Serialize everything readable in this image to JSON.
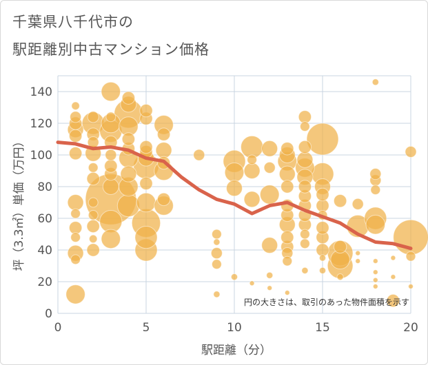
{
  "title_line1": "千葉県八千代市の",
  "title_line2": "駅距離別中古マンション価格",
  "colors": {
    "bubble": "#f0b24a",
    "line": "#d9634b",
    "grid": "#c9d4e0",
    "text": "#555555"
  },
  "chart_data": {
    "type": "scatter",
    "title": "千葉県八千代市の駅距離別中古マンション価格",
    "xlabel": "駅距離（分）",
    "ylabel": "坪（3.3㎡）単価（万円）",
    "xlim": [
      0,
      20
    ],
    "ylim": [
      0,
      150
    ],
    "xticks": [
      "0",
      "5",
      "10",
      "15",
      "20"
    ],
    "yticks": [
      "0",
      "20",
      "40",
      "60",
      "80",
      "100",
      "120",
      "140"
    ],
    "grid": true,
    "note": "円の大きさは、取引のあった物件面積を示す",
    "series": [
      {
        "kind": "bubble",
        "points": [
          {
            "x": 1,
            "y": 12,
            "s": 12
          },
          {
            "x": 1,
            "y": 34,
            "s": 6
          },
          {
            "x": 1,
            "y": 38,
            "s": 10
          },
          {
            "x": 1,
            "y": 48,
            "s": 6
          },
          {
            "x": 1,
            "y": 54,
            "s": 8
          },
          {
            "x": 1,
            "y": 63,
            "s": 6
          },
          {
            "x": 1,
            "y": 70,
            "s": 10
          },
          {
            "x": 1,
            "y": 101,
            "s": 8
          },
          {
            "x": 1,
            "y": 112,
            "s": 8
          },
          {
            "x": 1,
            "y": 116,
            "s": 10
          },
          {
            "x": 1,
            "y": 120,
            "s": 8
          },
          {
            "x": 1,
            "y": 124,
            "s": 7
          },
          {
            "x": 1,
            "y": 131,
            "s": 5
          },
          {
            "x": 2,
            "y": 40,
            "s": 8
          },
          {
            "x": 2,
            "y": 47,
            "s": 5
          },
          {
            "x": 2,
            "y": 55,
            "s": 8
          },
          {
            "x": 2,
            "y": 62,
            "s": 6
          },
          {
            "x": 2,
            "y": 70,
            "s": 6
          },
          {
            "x": 2,
            "y": 85,
            "s": 8
          },
          {
            "x": 2,
            "y": 92,
            "s": 6
          },
          {
            "x": 2,
            "y": 101,
            "s": 10
          },
          {
            "x": 2,
            "y": 108,
            "s": 7
          },
          {
            "x": 2,
            "y": 113,
            "s": 8
          },
          {
            "x": 2,
            "y": 120,
            "s": 14
          },
          {
            "x": 2,
            "y": 124,
            "s": 7
          },
          {
            "x": 3,
            "y": 72,
            "s": 32
          },
          {
            "x": 3,
            "y": 47,
            "s": 12
          },
          {
            "x": 3,
            "y": 58,
            "s": 14
          },
          {
            "x": 3,
            "y": 80,
            "s": 10
          },
          {
            "x": 3,
            "y": 88,
            "s": 8
          },
          {
            "x": 3,
            "y": 93,
            "s": 8
          },
          {
            "x": 3,
            "y": 100,
            "s": 7
          },
          {
            "x": 3,
            "y": 108,
            "s": 8
          },
          {
            "x": 3,
            "y": 115,
            "s": 14
          },
          {
            "x": 3,
            "y": 120,
            "s": 12
          },
          {
            "x": 3,
            "y": 124,
            "s": 6
          },
          {
            "x": 3,
            "y": 140,
            "s": 12
          },
          {
            "x": 4,
            "y": 68,
            "s": 14
          },
          {
            "x": 4,
            "y": 80,
            "s": 12
          },
          {
            "x": 4,
            "y": 88,
            "s": 10
          },
          {
            "x": 4,
            "y": 98,
            "s": 12
          },
          {
            "x": 4,
            "y": 104,
            "s": 8
          },
          {
            "x": 4,
            "y": 110,
            "s": 8
          },
          {
            "x": 4,
            "y": 118,
            "s": 12
          },
          {
            "x": 4,
            "y": 126,
            "s": 18
          },
          {
            "x": 4,
            "y": 132,
            "s": 10
          },
          {
            "x": 4,
            "y": 136,
            "s": 8
          },
          {
            "x": 5,
            "y": 40,
            "s": 14
          },
          {
            "x": 5,
            "y": 48,
            "s": 14
          },
          {
            "x": 5,
            "y": 57,
            "s": 18
          },
          {
            "x": 5,
            "y": 70,
            "s": 12
          },
          {
            "x": 5,
            "y": 82,
            "s": 8
          },
          {
            "x": 5,
            "y": 93,
            "s": 16
          },
          {
            "x": 5,
            "y": 98,
            "s": 10
          },
          {
            "x": 5,
            "y": 102,
            "s": 8
          },
          {
            "x": 5,
            "y": 105,
            "s": 8
          },
          {
            "x": 5,
            "y": 123,
            "s": 8
          },
          {
            "x": 5,
            "y": 128,
            "s": 8
          },
          {
            "x": 6,
            "y": 68,
            "s": 12
          },
          {
            "x": 6,
            "y": 72,
            "s": 8
          },
          {
            "x": 6,
            "y": 90,
            "s": 12
          },
          {
            "x": 6,
            "y": 95,
            "s": 8
          },
          {
            "x": 6,
            "y": 103,
            "s": 10
          },
          {
            "x": 6,
            "y": 113,
            "s": 8
          },
          {
            "x": 6,
            "y": 119,
            "s": 12
          },
          {
            "x": 8,
            "y": 100,
            "s": 7
          },
          {
            "x": 9,
            "y": 12,
            "s": 4
          },
          {
            "x": 9,
            "y": 31,
            "s": 6
          },
          {
            "x": 9,
            "y": 38,
            "s": 7
          },
          {
            "x": 9,
            "y": 45,
            "s": 4
          },
          {
            "x": 9,
            "y": 50,
            "s": 6
          },
          {
            "x": 10,
            "y": 23,
            "s": 4
          },
          {
            "x": 10,
            "y": 79,
            "s": 10
          },
          {
            "x": 10,
            "y": 89,
            "s": 12
          },
          {
            "x": 10,
            "y": 96,
            "s": 14
          },
          {
            "x": 11,
            "y": 19,
            "s": 3
          },
          {
            "x": 11,
            "y": 72,
            "s": 10
          },
          {
            "x": 11,
            "y": 90,
            "s": 10
          },
          {
            "x": 11,
            "y": 97,
            "s": 6
          },
          {
            "x": 11,
            "y": 105,
            "s": 14
          },
          {
            "x": 12,
            "y": 16,
            "s": 3
          },
          {
            "x": 12,
            "y": 24,
            "s": 4
          },
          {
            "x": 12,
            "y": 43,
            "s": 10
          },
          {
            "x": 12,
            "y": 75,
            "s": 12
          },
          {
            "x": 12,
            "y": 92,
            "s": 7
          },
          {
            "x": 12,
            "y": 104,
            "s": 10
          },
          {
            "x": 13,
            "y": 13,
            "s": 3
          },
          {
            "x": 13,
            "y": 33,
            "s": 6
          },
          {
            "x": 13,
            "y": 38,
            "s": 7
          },
          {
            "x": 13,
            "y": 42,
            "s": 8
          },
          {
            "x": 13,
            "y": 48,
            "s": 8
          },
          {
            "x": 13,
            "y": 56,
            "s": 10
          },
          {
            "x": 13,
            "y": 62,
            "s": 8
          },
          {
            "x": 13,
            "y": 68,
            "s": 8
          },
          {
            "x": 13,
            "y": 80,
            "s": 8
          },
          {
            "x": 13,
            "y": 88,
            "s": 10
          },
          {
            "x": 13,
            "y": 96,
            "s": 12
          },
          {
            "x": 13,
            "y": 100,
            "s": 10
          },
          {
            "x": 13,
            "y": 104,
            "s": 8
          },
          {
            "x": 14,
            "y": 27,
            "s": 4
          },
          {
            "x": 14,
            "y": 44,
            "s": 6
          },
          {
            "x": 14,
            "y": 50,
            "s": 6
          },
          {
            "x": 14,
            "y": 56,
            "s": 8
          },
          {
            "x": 14,
            "y": 62,
            "s": 8
          },
          {
            "x": 14,
            "y": 68,
            "s": 8
          },
          {
            "x": 14,
            "y": 74,
            "s": 8
          },
          {
            "x": 14,
            "y": 80,
            "s": 8
          },
          {
            "x": 14,
            "y": 86,
            "s": 10
          },
          {
            "x": 14,
            "y": 92,
            "s": 12
          },
          {
            "x": 14,
            "y": 97,
            "s": 10
          },
          {
            "x": 14,
            "y": 105,
            "s": 8
          },
          {
            "x": 14,
            "y": 118,
            "s": 6
          },
          {
            "x": 14,
            "y": 124,
            "s": 8
          },
          {
            "x": 15,
            "y": 27,
            "s": 4
          },
          {
            "x": 15,
            "y": 35,
            "s": 4
          },
          {
            "x": 15,
            "y": 40,
            "s": 8
          },
          {
            "x": 15,
            "y": 48,
            "s": 8
          },
          {
            "x": 15,
            "y": 54,
            "s": 8
          },
          {
            "x": 15,
            "y": 62,
            "s": 6
          },
          {
            "x": 15,
            "y": 68,
            "s": 8
          },
          {
            "x": 15,
            "y": 75,
            "s": 8
          },
          {
            "x": 15,
            "y": 80,
            "s": 10
          },
          {
            "x": 15,
            "y": 88,
            "s": 14
          },
          {
            "x": 15,
            "y": 110,
            "s": 20
          },
          {
            "x": 16,
            "y": 23,
            "s": 4
          },
          {
            "x": 16,
            "y": 30,
            "s": 16
          },
          {
            "x": 16,
            "y": 34,
            "s": 12
          },
          {
            "x": 16,
            "y": 38,
            "s": 16
          },
          {
            "x": 16,
            "y": 42,
            "s": 8
          },
          {
            "x": 16,
            "y": 71,
            "s": 8
          },
          {
            "x": 17,
            "y": 33,
            "s": 3
          },
          {
            "x": 17,
            "y": 38,
            "s": 3
          },
          {
            "x": 17,
            "y": 55,
            "s": 14
          },
          {
            "x": 17,
            "y": 69,
            "s": 7
          },
          {
            "x": 18,
            "y": 17,
            "s": 3
          },
          {
            "x": 18,
            "y": 21,
            "s": 3
          },
          {
            "x": 18,
            "y": 26,
            "s": 3
          },
          {
            "x": 18,
            "y": 33,
            "s": 3
          },
          {
            "x": 18,
            "y": 56,
            "s": 12
          },
          {
            "x": 18,
            "y": 60,
            "s": 14
          },
          {
            "x": 18,
            "y": 78,
            "s": 6
          },
          {
            "x": 18,
            "y": 84,
            "s": 7
          },
          {
            "x": 18,
            "y": 88,
            "s": 7
          },
          {
            "x": 18,
            "y": 146,
            "s": 4
          },
          {
            "x": 19,
            "y": 8,
            "s": 8
          },
          {
            "x": 19,
            "y": 23,
            "s": 3
          },
          {
            "x": 19,
            "y": 35,
            "s": 3
          },
          {
            "x": 20,
            "y": 17,
            "s": 3
          },
          {
            "x": 20,
            "y": 36,
            "s": 6
          },
          {
            "x": 20,
            "y": 48,
            "s": 22
          },
          {
            "x": 20,
            "y": 102,
            "s": 7
          }
        ]
      },
      {
        "kind": "line",
        "points": [
          {
            "x": 0,
            "y": 108
          },
          {
            "x": 1,
            "y": 107
          },
          {
            "x": 2,
            "y": 104
          },
          {
            "x": 3,
            "y": 105
          },
          {
            "x": 4,
            "y": 103
          },
          {
            "x": 5,
            "y": 98
          },
          {
            "x": 6,
            "y": 96
          },
          {
            "x": 7,
            "y": 86
          },
          {
            "x": 8,
            "y": 78
          },
          {
            "x": 9,
            "y": 72
          },
          {
            "x": 10,
            "y": 69
          },
          {
            "x": 11,
            "y": 63
          },
          {
            "x": 12,
            "y": 68
          },
          {
            "x": 13,
            "y": 70
          },
          {
            "x": 14,
            "y": 65
          },
          {
            "x": 15,
            "y": 61
          },
          {
            "x": 16,
            "y": 57
          },
          {
            "x": 17,
            "y": 50
          },
          {
            "x": 18,
            "y": 45
          },
          {
            "x": 19,
            "y": 44
          },
          {
            "x": 20,
            "y": 41
          }
        ]
      }
    ]
  }
}
